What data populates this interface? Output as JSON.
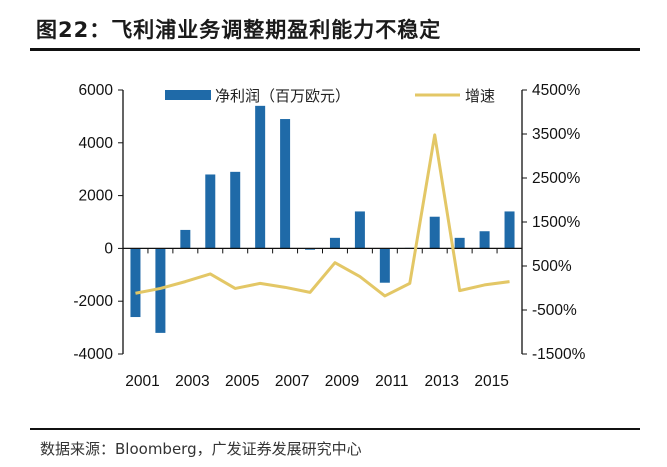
{
  "title": "图22：飞利浦业务调整期盈利能力不稳定",
  "source": "数据来源：Bloomberg，广发证券发展研究中心",
  "chart_data": {
    "type": "bar+line",
    "categories": [
      "2001",
      "2002",
      "2003",
      "2004",
      "2005",
      "2006",
      "2007",
      "2008",
      "2009",
      "2010",
      "2011",
      "2012",
      "2013",
      "2014",
      "2015",
      "2016"
    ],
    "x_tick_labels": [
      "2001",
      "2003",
      "2005",
      "2007",
      "2009",
      "2011",
      "2013",
      "2015"
    ],
    "series": [
      {
        "name": "净利润（百万欧元）",
        "type": "bar",
        "axis": "left",
        "color": "#1f6aa8",
        "values": [
          -2600,
          -3200,
          700,
          2800,
          2900,
          5400,
          4900,
          -50,
          400,
          1400,
          -1300,
          20,
          1200,
          400,
          650,
          1400
        ]
      },
      {
        "name": "增速",
        "type": "line",
        "axis": "right",
        "color": "#e3c766",
        "values": [
          -120,
          -10,
          145,
          320,
          -10,
          105,
          15,
          -100,
          575,
          260,
          -180,
          105,
          3480,
          -60,
          70,
          145
        ]
      }
    ],
    "left_axis": {
      "ylim": [
        -4000,
        6000
      ],
      "ticks": [
        "-4000",
        "-2000",
        "0",
        "2000",
        "4000",
        "6000"
      ]
    },
    "right_axis": {
      "ylim": [
        -1500,
        4500
      ],
      "unit": "%",
      "ticks": [
        "-1500%",
        "-500%",
        "500%",
        "1500%",
        "2500%",
        "3500%",
        "4500%"
      ]
    },
    "grid": false,
    "legend": "top"
  }
}
